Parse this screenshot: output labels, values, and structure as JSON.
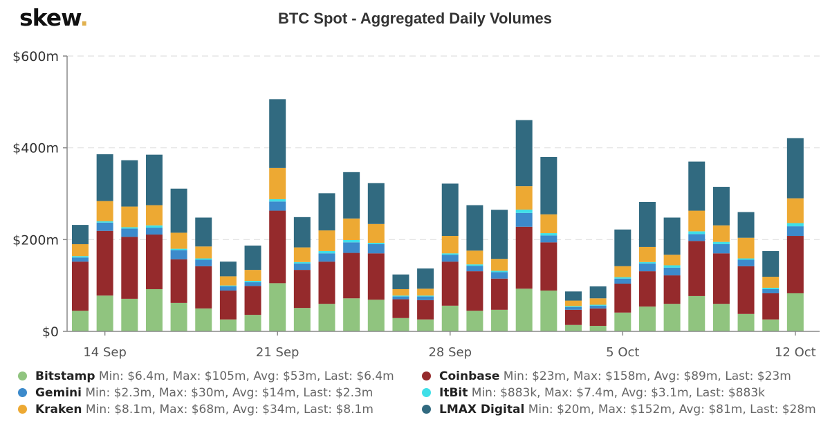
{
  "header": {
    "logo_text": "skew",
    "logo_dot": ".",
    "title": "BTC Spot - Aggregated Daily Volumes"
  },
  "chart_data": {
    "type": "bar",
    "stacked": true,
    "title": "BTC Spot - Aggregated Daily Volumes",
    "xlabel": "",
    "ylabel": "",
    "ylim": [
      0,
      600
    ],
    "y_unit": "$m",
    "y_ticks": [
      {
        "value": 0,
        "label": "$0"
      },
      {
        "value": 200,
        "label": "$200m"
      },
      {
        "value": 400,
        "label": "$400m"
      },
      {
        "value": 600,
        "label": "$600m"
      }
    ],
    "grid": "horizontal dashed",
    "x_ticks": [
      {
        "index": 1,
        "label": "14 Sep"
      },
      {
        "index": 8,
        "label": "21 Sep"
      },
      {
        "index": 15,
        "label": "28 Sep"
      },
      {
        "index": 22,
        "label": "5 Oct"
      },
      {
        "index": 29,
        "label": "12 Oct"
      }
    ],
    "categories": [
      "13 Sep",
      "14 Sep",
      "15 Sep",
      "16 Sep",
      "17 Sep",
      "18 Sep",
      "19 Sep",
      "20 Sep",
      "21 Sep",
      "22 Sep",
      "23 Sep",
      "24 Sep",
      "25 Sep",
      "26 Sep",
      "27 Sep",
      "28 Sep",
      "29 Sep",
      "30 Sep",
      "1 Oct",
      "2 Oct",
      "3 Oct",
      "4 Oct",
      "5 Oct",
      "6 Oct",
      "7 Oct",
      "8 Oct",
      "9 Oct",
      "10 Oct",
      "11 Oct",
      "12 Oct"
    ],
    "series": [
      {
        "name": "Bitstamp",
        "color": "#90c47f",
        "values": [
          45,
          78,
          71,
          92,
          62,
          50,
          26,
          36,
          105,
          51,
          60,
          72,
          69,
          29,
          26,
          56,
          45,
          47,
          93,
          89,
          14,
          12,
          41,
          54,
          60,
          77,
          60,
          38,
          26,
          83
        ]
      },
      {
        "name": "Coinbase",
        "color": "#952a2c",
        "values": [
          107,
          141,
          135,
          119,
          95,
          92,
          63,
          63,
          158,
          83,
          92,
          99,
          101,
          41,
          42,
          96,
          86,
          68,
          135,
          105,
          33,
          38,
          63,
          77,
          62,
          120,
          110,
          104,
          57,
          125
        ]
      },
      {
        "name": "Gemini",
        "color": "#3c8acb",
        "values": [
          9,
          18,
          18,
          15,
          20,
          14,
          9,
          8,
          20,
          14,
          18,
          23,
          20,
          6,
          8,
          15,
          12,
          14,
          30,
          15,
          6,
          6,
          11,
          17,
          17,
          15,
          20,
          14,
          9,
          21
        ]
      },
      {
        "name": "ItBit",
        "color": "#3fdfe8",
        "values": [
          3,
          3,
          3,
          5,
          3,
          3,
          2,
          3,
          5,
          3,
          5,
          5,
          3,
          2,
          2,
          3,
          3,
          3,
          7.4,
          5,
          2,
          2,
          3,
          3,
          5,
          6,
          5,
          3,
          3,
          7
        ]
      },
      {
        "name": "Kraken",
        "color": "#eda933",
        "values": [
          26,
          44,
          45,
          44,
          35,
          26,
          20,
          24,
          68,
          32,
          45,
          47,
          41,
          14,
          15,
          38,
          30,
          26,
          51,
          41,
          12,
          14,
          24,
          33,
          23,
          45,
          36,
          45,
          24,
          54
        ]
      },
      {
        "name": "LMAX Digital",
        "color": "#316a80",
        "values": [
          42,
          102,
          101,
          110,
          96,
          63,
          32,
          53,
          150,
          66,
          81,
          101,
          89,
          32,
          44,
          114,
          99,
          107,
          144,
          125,
          20,
          26,
          80,
          98,
          81,
          107,
          84,
          56,
          56,
          131
        ]
      }
    ],
    "legend_position": "bottom",
    "legend": [
      {
        "name": "Bitstamp",
        "color": "#90c47f",
        "stats": "Min: $6.4m, Max: $105m, Avg: $53m, Last: $6.4m"
      },
      {
        "name": "Coinbase",
        "color": "#952a2c",
        "stats": "Min: $23m, Max: $158m, Avg: $89m, Last: $23m"
      },
      {
        "name": "Gemini",
        "color": "#3c8acb",
        "stats": "Min: $2.3m, Max: $30m, Avg: $14m, Last: $2.3m"
      },
      {
        "name": "ItBit",
        "color": "#3fdfe8",
        "stats": "Min: $883k, Max: $7.4m, Avg: $3.1m, Last: $883k"
      },
      {
        "name": "Kraken",
        "color": "#eda933",
        "stats": "Min: $8.1m, Max: $68m, Avg: $34m, Last: $8.1m"
      },
      {
        "name": "LMAX Digital",
        "color": "#316a80",
        "stats": "Min: $20m, Max: $152m, Avg: $81m, Last: $28m"
      }
    ]
  }
}
